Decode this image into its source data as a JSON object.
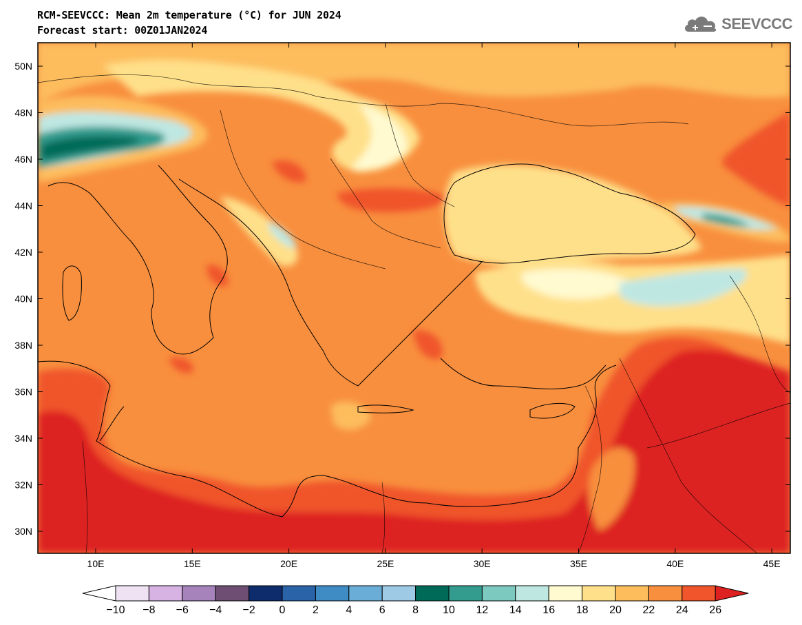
{
  "title": {
    "line1": "RCM-SEEVCCC: Mean 2m temperature (°C) for JUN 2024",
    "line2": "Forecast start: 00Z01JAN2024"
  },
  "logo": {
    "text": "SEEVCCC",
    "icon": "cloud-icon",
    "color": "#7a7a7a"
  },
  "map": {
    "lat_labels": [
      "50N",
      "48N",
      "46N",
      "44N",
      "42N",
      "40N",
      "38N",
      "36N",
      "34N",
      "32N",
      "30N"
    ],
    "lon_labels": [
      "10E",
      "15E",
      "20E",
      "25E",
      "30E",
      "35E",
      "40E",
      "45E"
    ]
  },
  "colorbar": {
    "labels": [
      "−10",
      "−8",
      "−6",
      "−4",
      "−2",
      "0",
      "2",
      "4",
      "6",
      "8",
      "10",
      "12",
      "14",
      "16",
      "18",
      "20",
      "22",
      "24",
      "26"
    ],
    "colors": [
      "#ffffff",
      "#efe3f3",
      "#d6b3e3",
      "#a684bb",
      "#6e4f73",
      "#0e2c6b",
      "#2a63a8",
      "#3f8cc4",
      "#6aaed8",
      "#9fcae6",
      "#006a59",
      "#339c8f",
      "#7cc9bf",
      "#bfe7e2",
      "#fffad0",
      "#ffe08a",
      "#fdbd5d",
      "#f88f3e",
      "#f0552c",
      "#dd2020"
    ]
  }
}
